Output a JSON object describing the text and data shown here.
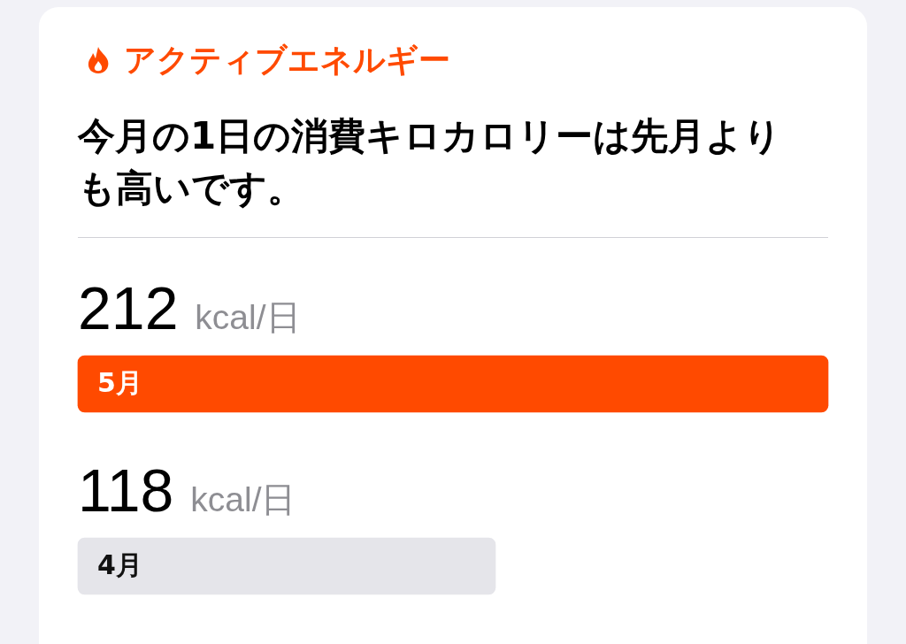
{
  "chart_data": {
    "type": "bar",
    "orientation": "horizontal",
    "title": "アクティブエネルギー",
    "subtitle": "今月の1日の消費キロカロリーは先月よりも高いです。",
    "categories": [
      "5月",
      "4月"
    ],
    "values": [
      212,
      118
    ],
    "colors": [
      "#ff4a00",
      "#e5e5ea"
    ],
    "value_labels": [
      "212 kcal/日",
      "118 kcal/日"
    ],
    "legend": false,
    "grid": false
  }
}
